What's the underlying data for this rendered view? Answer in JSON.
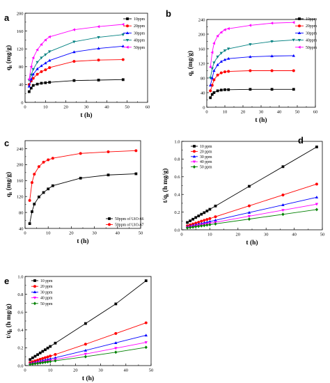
{
  "colors": {
    "10": "#000000",
    "20": "#ff0000",
    "30": "#0000ff",
    "40": "#ff00ff",
    "50": "#008000",
    "pink": "#ff00ff",
    "teal": "#008080"
  },
  "chart_data": [
    {
      "id": "a",
      "panel_label": "a",
      "type": "line",
      "xlabel": "t (h)",
      "ylabel": "q",
      "ylabel_sub": "t",
      "ylabel_tail": " (mg/g)",
      "xlim": [
        0,
        60
      ],
      "ylim": [
        0,
        200
      ],
      "xticks": [
        0,
        10,
        20,
        30,
        40,
        50,
        60
      ],
      "yticks": [
        0,
        40,
        80,
        120,
        160,
        200
      ],
      "legend_pos": "top-right",
      "grid": false,
      "series": [
        {
          "name": "10ppm",
          "color": "#000000",
          "marker": "square",
          "x": [
            2,
            3,
            4,
            6,
            8,
            10,
            12,
            24,
            36,
            48
          ],
          "y": [
            24,
            32,
            38,
            41,
            43,
            44,
            45,
            49,
            50,
            51
          ]
        },
        {
          "name": "20ppm",
          "color": "#ff0000",
          "marker": "circle",
          "x": [
            2,
            3,
            4,
            6,
            8,
            10,
            12,
            24,
            36,
            48
          ],
          "y": [
            40,
            48,
            54,
            63,
            69,
            73,
            78,
            92,
            95,
            96
          ]
        },
        {
          "name": "30ppm",
          "color": "#0000ff",
          "marker": "triangle",
          "x": [
            2,
            3,
            4,
            6,
            8,
            10,
            12,
            24,
            36,
            48
          ],
          "y": [
            36,
            52,
            63,
            75,
            82,
            88,
            94,
            113,
            121,
            126
          ]
        },
        {
          "name": "40ppm",
          "color": "#008080",
          "marker": "triangle-down",
          "x": [
            2,
            3,
            4,
            6,
            8,
            10,
            12,
            24,
            36,
            48
          ],
          "y": [
            50,
            62,
            74,
            90,
            100,
            107,
            114,
            136,
            146,
            152
          ]
        },
        {
          "name": "50ppm",
          "color": "#ff00ff",
          "marker": "triangle-left",
          "x": [
            2,
            3,
            4,
            6,
            8,
            10,
            12,
            24,
            36,
            48
          ],
          "y": [
            52,
            80,
            100,
            118,
            130,
            140,
            147,
            163,
            170,
            175
          ]
        }
      ]
    },
    {
      "id": "b",
      "panel_label": "b",
      "type": "line",
      "xlabel": "t (h)",
      "ylabel": "q",
      "ylabel_sub": "t",
      "ylabel_tail": " (mg/g)",
      "xlim": [
        0,
        60
      ],
      "ylim": [
        0,
        240
      ],
      "xticks": [
        0,
        10,
        20,
        30,
        40,
        50,
        60
      ],
      "yticks": [
        0,
        40,
        80,
        120,
        160,
        200,
        240
      ],
      "legend_pos": "top-right",
      "grid": false,
      "series": [
        {
          "name": "10ppm",
          "color": "#000000",
          "marker": "square",
          "x": [
            2,
            3,
            4,
            6,
            8,
            10,
            12,
            24,
            36,
            48
          ],
          "y": [
            26,
            35,
            40,
            45,
            47,
            48,
            48,
            49,
            49,
            49
          ]
        },
        {
          "name": "20ppm",
          "color": "#ff0000",
          "marker": "circle",
          "x": [
            2,
            3,
            4,
            6,
            8,
            10,
            12,
            24,
            36,
            48
          ],
          "y": [
            45,
            60,
            75,
            88,
            94,
            97,
            98,
            100,
            100,
            100
          ]
        },
        {
          "name": "30ppm",
          "color": "#0000ff",
          "marker": "triangle",
          "x": [
            2,
            3,
            4,
            6,
            8,
            10,
            12,
            24,
            36,
            48
          ],
          "y": [
            60,
            80,
            100,
            116,
            125,
            130,
            133,
            138,
            140,
            141
          ]
        },
        {
          "name": "40ppm",
          "color": "#008080",
          "marker": "triangle-down",
          "x": [
            2,
            3,
            4,
            6,
            8,
            10,
            12,
            24,
            36,
            48
          ],
          "y": [
            80,
            106,
            122,
            138,
            148,
            155,
            160,
            172,
            180,
            184
          ]
        },
        {
          "name": "50ppm",
          "color": "#ff00ff",
          "marker": "triangle-left",
          "x": [
            2,
            3,
            4,
            6,
            8,
            10,
            12,
            24,
            36,
            48
          ],
          "y": [
            110,
            150,
            175,
            195,
            205,
            212,
            215,
            224,
            230,
            232
          ]
        }
      ]
    },
    {
      "id": "c",
      "panel_label": "c",
      "type": "line",
      "xlabel": "t (h)",
      "ylabel": "q",
      "ylabel_sub": "t",
      "ylabel_tail": " (mg/g)",
      "xlim": [
        0,
        50
      ],
      "ylim": [
        40,
        260
      ],
      "xticks": [
        0,
        10,
        20,
        30,
        40,
        50
      ],
      "yticks": [
        40,
        80,
        120,
        160,
        200,
        240
      ],
      "legend_pos": "bottom-right",
      "grid": false,
      "series": [
        {
          "name": "50ppm of UiO-66",
          "color": "#000000",
          "marker": "square",
          "x": [
            2,
            3,
            4,
            6,
            8,
            10,
            12,
            24,
            36,
            48
          ],
          "y": [
            52,
            82,
            101,
            119,
            130,
            139,
            147,
            166,
            174,
            177
          ]
        },
        {
          "name": "50ppm of UiO-67",
          "color": "#ff0000",
          "marker": "circle",
          "x": [
            2,
            3,
            4,
            6,
            8,
            10,
            12,
            24,
            36,
            48
          ],
          "y": [
            110,
            155,
            176,
            195,
            206,
            212,
            216,
            228,
            232,
            235
          ]
        }
      ]
    },
    {
      "id": "d",
      "panel_label": "d",
      "type": "line",
      "xlabel": "t (h)",
      "ylabel": "t/q",
      "ylabel_sub": "t",
      "ylabel_tail": " (h mg/g)",
      "xlim": [
        0,
        50
      ],
      "ylim": [
        0.0,
        1.0
      ],
      "xticks": [
        0,
        10,
        20,
        30,
        40,
        50
      ],
      "yticks": [
        0.0,
        0.2,
        0.4,
        0.6,
        0.8,
        1.0
      ],
      "ytick_decimals": 1,
      "legend_pos": "top-left",
      "grid": false,
      "series": [
        {
          "name": "10 ppm",
          "color": "#000000",
          "marker": "square",
          "x": [
            2,
            3,
            4,
            5,
            6,
            7,
            8,
            9,
            10,
            12,
            24,
            36,
            48
          ],
          "y": [
            0.083,
            0.101,
            0.12,
            0.139,
            0.157,
            0.176,
            0.194,
            0.213,
            0.232,
            0.269,
            0.492,
            0.714,
            0.937
          ]
        },
        {
          "name": "20 ppm",
          "color": "#ff0000",
          "marker": "circle",
          "x": [
            2,
            3,
            4,
            5,
            6,
            7,
            8,
            9,
            10,
            12,
            24,
            36,
            48
          ],
          "y": [
            0.045,
            0.056,
            0.066,
            0.076,
            0.086,
            0.097,
            0.107,
            0.117,
            0.127,
            0.148,
            0.271,
            0.394,
            0.517
          ]
        },
        {
          "name": "30 ppm",
          "color": "#0000ff",
          "marker": "triangle",
          "x": [
            2,
            3,
            4,
            5,
            6,
            7,
            8,
            9,
            10,
            12,
            24,
            36,
            48
          ],
          "y": [
            0.035,
            0.042,
            0.05,
            0.057,
            0.064,
            0.071,
            0.079,
            0.086,
            0.093,
            0.108,
            0.195,
            0.281,
            0.368
          ]
        },
        {
          "name": "40 ppm",
          "color": "#ff00ff",
          "marker": "triangle-down",
          "x": [
            2,
            3,
            4,
            5,
            6,
            7,
            8,
            9,
            10,
            12,
            24,
            36,
            48
          ],
          "y": [
            0.028,
            0.034,
            0.039,
            0.045,
            0.051,
            0.057,
            0.062,
            0.068,
            0.074,
            0.085,
            0.154,
            0.222,
            0.29
          ]
        },
        {
          "name": "50 ppm",
          "color": "#008000",
          "marker": "diamond",
          "x": [
            2,
            3,
            4,
            5,
            6,
            7,
            8,
            9,
            10,
            12,
            24,
            36,
            48
          ],
          "y": [
            0.022,
            0.027,
            0.031,
            0.036,
            0.04,
            0.045,
            0.049,
            0.054,
            0.058,
            0.067,
            0.121,
            0.175,
            0.229
          ]
        }
      ]
    },
    {
      "id": "e",
      "panel_label": "e",
      "type": "line",
      "xlabel": "t (h)",
      "ylabel": "t/q",
      "ylabel_sub": "t",
      "ylabel_tail": " (h mg/g)",
      "xlim": [
        0,
        50
      ],
      "ylim": [
        0.0,
        1.0
      ],
      "xticks": [
        0,
        10,
        20,
        30,
        40,
        50
      ],
      "yticks": [
        0.0,
        0.2,
        0.4,
        0.6,
        0.8,
        1.0
      ],
      "ytick_decimals": 1,
      "legend_pos": "top-left",
      "grid": false,
      "series": [
        {
          "name": "10 ppm",
          "color": "#000000",
          "marker": "square",
          "x": [
            2,
            3,
            4,
            5,
            6,
            7,
            8,
            9,
            10,
            12,
            24,
            36,
            48
          ],
          "y": [
            0.068,
            0.087,
            0.105,
            0.123,
            0.142,
            0.16,
            0.178,
            0.197,
            0.215,
            0.252,
            0.472,
            0.692,
            0.952
          ]
        },
        {
          "name": "20 ppm",
          "color": "#ff0000",
          "marker": "circle",
          "x": [
            2,
            3,
            4,
            5,
            6,
            7,
            8,
            9,
            10,
            12,
            24,
            36,
            48
          ],
          "y": [
            0.034,
            0.044,
            0.053,
            0.062,
            0.071,
            0.08,
            0.089,
            0.098,
            0.107,
            0.125,
            0.24,
            0.36,
            0.48
          ]
        },
        {
          "name": "30 ppm",
          "color": "#0000ff",
          "marker": "triangle",
          "x": [
            2,
            3,
            4,
            5,
            6,
            7,
            8,
            9,
            10,
            12,
            24,
            36,
            48
          ],
          "y": [
            0.024,
            0.03,
            0.037,
            0.043,
            0.05,
            0.056,
            0.062,
            0.069,
            0.075,
            0.088,
            0.17,
            0.255,
            0.34
          ]
        },
        {
          "name": "40 ppm",
          "color": "#ff00ff",
          "marker": "triangle-down",
          "x": [
            2,
            3,
            4,
            5,
            6,
            7,
            8,
            9,
            10,
            12,
            24,
            36,
            48
          ],
          "y": [
            0.018,
            0.023,
            0.028,
            0.033,
            0.038,
            0.043,
            0.048,
            0.053,
            0.058,
            0.068,
            0.13,
            0.195,
            0.26
          ]
        },
        {
          "name": "50 ppm",
          "color": "#008000",
          "marker": "diamond",
          "x": [
            2,
            3,
            4,
            5,
            6,
            7,
            8,
            9,
            10,
            12,
            24,
            36,
            48
          ],
          "y": [
            0.014,
            0.018,
            0.022,
            0.026,
            0.03,
            0.034,
            0.038,
            0.042,
            0.046,
            0.054,
            0.1,
            0.15,
            0.205
          ]
        }
      ]
    }
  ]
}
